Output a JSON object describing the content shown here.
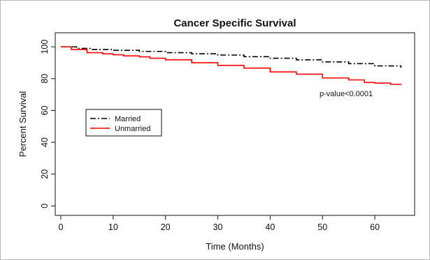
{
  "chart_data": {
    "type": "line",
    "title": "Cancer Specific Survival",
    "xlabel": "Time (Months)",
    "ylabel": "Percent Survival",
    "xlim": [
      0,
      66
    ],
    "ylim": [
      -2,
      104
    ],
    "x_ticks": [
      0,
      10,
      20,
      30,
      40,
      50,
      60
    ],
    "y_ticks": [
      0,
      20,
      40,
      60,
      80,
      100
    ],
    "grid": false,
    "legend_position": "left-middle",
    "annotation": "p-value<0.0001",
    "series": [
      {
        "name": "Married",
        "color": "#000000",
        "line_style": "dashdot",
        "x": [
          0,
          3,
          6,
          10,
          15,
          20,
          25,
          30,
          35,
          40,
          45,
          50,
          55,
          60,
          65
        ],
        "y": [
          100,
          99,
          98.3,
          97.8,
          97.1,
          96.3,
          95.6,
          94.8,
          93.8,
          92.8,
          91.8,
          90.5,
          89.4,
          88,
          86.8
        ]
      },
      {
        "name": "Unmarried",
        "color": "#ff0000",
        "line_style": "solid",
        "x": [
          0,
          2,
          5,
          8,
          10,
          12,
          15,
          17,
          20,
          25,
          30,
          35,
          40,
          45,
          50,
          55,
          58,
          60,
          63,
          65
        ],
        "y": [
          100,
          98.3,
          96.3,
          95.6,
          95,
          94.3,
          93.7,
          92.8,
          91.8,
          90,
          88.3,
          86.6,
          84.2,
          82.8,
          80.4,
          79.2,
          77.6,
          77.2,
          76.4,
          76
        ]
      }
    ]
  }
}
